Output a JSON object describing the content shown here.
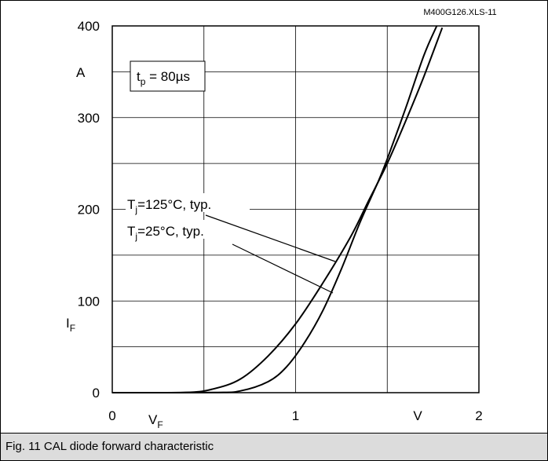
{
  "chart_data": {
    "type": "line",
    "source_id": "M400G126.XLS-11",
    "xlim": [
      0,
      2
    ],
    "ylim": [
      0,
      400
    ],
    "x_ticks": [
      "0",
      "1",
      "2"
    ],
    "y_ticks": [
      "0",
      "100",
      "200",
      "300",
      "400"
    ],
    "xlabel": {
      "main": "V",
      "sub": "F"
    },
    "x_unit": "V",
    "ylabel": {
      "main": "I",
      "sub": "F"
    },
    "y_unit": "A",
    "condition": {
      "main": "t",
      "sub": "p",
      "rest": " = 80µs"
    },
    "grid": true,
    "series": [
      {
        "name_main": "T",
        "name_sub": "j",
        "name_rest": "=125°C, typ.",
        "x": [
          0.0,
          0.4,
          0.55,
          0.7,
          0.85,
          1.0,
          1.15,
          1.3,
          1.4,
          1.5,
          1.6,
          1.7,
          1.8
        ],
        "y": [
          0,
          0.3,
          4,
          15,
          40,
          75,
          120,
          170,
          210,
          250,
          296,
          345,
          398
        ]
      },
      {
        "name_main": "T",
        "name_sub": "j",
        "name_rest": "=25°C, typ.",
        "x": [
          0.0,
          0.55,
          0.7,
          0.85,
          0.95,
          1.05,
          1.15,
          1.25,
          1.35,
          1.45,
          1.5,
          1.6,
          1.7,
          1.77
        ],
        "y": [
          0,
          0.2,
          2,
          12,
          28,
          55,
          90,
          135,
          185,
          230,
          255,
          310,
          368,
          400
        ]
      }
    ]
  },
  "caption": "Fig. 11 CAL diode forward characteristic"
}
